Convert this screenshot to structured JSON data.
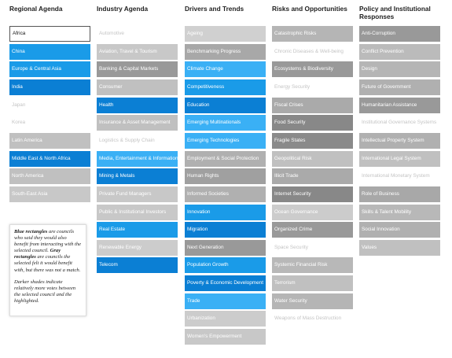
{
  "columns": [
    {
      "title": "Regional Agenda",
      "items": [
        {
          "label": "Africa",
          "color": "#ffffff",
          "selected": true
        },
        {
          "label": "China",
          "color": "#1a9be8"
        },
        {
          "label": "Europe & Central Asia",
          "color": "#1a9be8"
        },
        {
          "label": "India",
          "color": "#0b7fd4"
        },
        {
          "label": "Japan"
        },
        {
          "label": "Korea"
        },
        {
          "label": "Latin America",
          "color": "#c0c0c0"
        },
        {
          "label": "Middle East & North Africa",
          "color": "#0b7fd4"
        },
        {
          "label": "North America",
          "color": "#c0c0c0"
        },
        {
          "label": "South-East Asia",
          "color": "#c8c8c8"
        }
      ]
    },
    {
      "title": "Industry Agenda",
      "items": [
        {
          "label": "Automotive"
        },
        {
          "label": "Aviation, Travel & Tourism",
          "color": "#c8c8c8"
        },
        {
          "label": "Banking & Capital Markets",
          "color": "#999999"
        },
        {
          "label": "Consumer",
          "color": "#c0c0c0"
        },
        {
          "label": "Health",
          "color": "#0b7fd4"
        },
        {
          "label": "Insurance & Asset Management",
          "color": "#c0c0c0"
        },
        {
          "label": "Logistics & Supply Chain"
        },
        {
          "label": "Media, Entertainment & Information",
          "color": "#3ab0f5"
        },
        {
          "label": "Mining & Metals",
          "color": "#0b7fd4"
        },
        {
          "label": "Private Fund Managers",
          "color": "#c8c8c8"
        },
        {
          "label": "Public & Institutional Investors",
          "color": "#c8c8c8"
        },
        {
          "label": "Real Estate",
          "color": "#1a9be8"
        },
        {
          "label": "Renewable Energy",
          "color": "#cccccc"
        },
        {
          "label": "Telecom",
          "color": "#0b7fd4"
        }
      ]
    },
    {
      "title": "Drivers and Trends",
      "items": [
        {
          "label": "Ageing",
          "color": "#d0d0d0"
        },
        {
          "label": "Benchmarking Progress",
          "color": "#a8a8a8"
        },
        {
          "label": "Climate Change",
          "color": "#3ab0f5"
        },
        {
          "label": "Competitiveness",
          "color": "#1a9be8"
        },
        {
          "label": "Education",
          "color": "#0b7fd4"
        },
        {
          "label": "Emerging Multinationals",
          "color": "#3ab0f5"
        },
        {
          "label": "Emerging Technologies",
          "color": "#3ab0f5"
        },
        {
          "label": "Employment & Social Protection",
          "color": "#b0b0b0"
        },
        {
          "label": "Human Rights",
          "color": "#a0a0a0"
        },
        {
          "label": "Informed Societies",
          "color": "#b0b0b0"
        },
        {
          "label": "Innovation",
          "color": "#1a9be8"
        },
        {
          "label": "Migration",
          "color": "#0b7fd4"
        },
        {
          "label": "Next Generation",
          "color": "#999999"
        },
        {
          "label": "Population Growth",
          "color": "#1a9be8"
        },
        {
          "label": "Poverty & Economic Development",
          "color": "#0b7fd4"
        },
        {
          "label": "Trade",
          "color": "#3ab0f5"
        },
        {
          "label": "Urbanization",
          "color": "#cccccc"
        },
        {
          "label": "Women's Empowerment",
          "color": "#c8c8c8"
        }
      ]
    },
    {
      "title": "Risks and Opportunities",
      "items": [
        {
          "label": "Catastrophic Risks",
          "color": "#b5b5b5"
        },
        {
          "label": "Chronic Diseases & Well-being"
        },
        {
          "label": "Ecosystems & Biodiversity",
          "color": "#999999"
        },
        {
          "label": "Energy Security"
        },
        {
          "label": "Fiscal Crises",
          "color": "#aaaaaa"
        },
        {
          "label": "Food Security",
          "color": "#888888"
        },
        {
          "label": "Fragile States",
          "color": "#8a8a8a"
        },
        {
          "label": "Geopolitical Risk",
          "color": "#c0c0c0"
        },
        {
          "label": "Illicit Trade",
          "color": "#aaaaaa"
        },
        {
          "label": "Internet Security",
          "color": "#888888"
        },
        {
          "label": "Ocean Governance",
          "color": "#cccccc"
        },
        {
          "label": "Organized Crime",
          "color": "#999999"
        },
        {
          "label": "Space Security"
        },
        {
          "label": "Systemic Financial Risk",
          "color": "#b8b8b8"
        },
        {
          "label": "Terrorism",
          "color": "#c0c0c0"
        },
        {
          "label": "Water Security",
          "color": "#b5b5b5"
        },
        {
          "label": "Weapons of Mass Destruction"
        }
      ]
    },
    {
      "title": "Policy and Institutional Responses",
      "items": [
        {
          "label": "Anti-Corruption",
          "color": "#999999"
        },
        {
          "label": "Conflict Prevention",
          "color": "#bbbbbb"
        },
        {
          "label": "Design",
          "color": "#b5b5b5"
        },
        {
          "label": "Future of Government",
          "color": "#b0b0b0"
        },
        {
          "label": "Humanitarian Assistance",
          "color": "#999999"
        },
        {
          "label": "Institutional Governance Systems"
        },
        {
          "label": "Intellectual Property System",
          "color": "#b0b0b0"
        },
        {
          "label": "International Legal System",
          "color": "#c0c0c0"
        },
        {
          "label": "International Monetary System"
        },
        {
          "label": "Role of Business",
          "color": "#a8a8a8"
        },
        {
          "label": "Skills & Talent Mobility",
          "color": "#b8b8b8"
        },
        {
          "label": "Social Innovation",
          "color": "#b0b0b0"
        },
        {
          "label": "Values",
          "color": "#c0c0c0"
        }
      ]
    }
  ],
  "legend": {
    "paragraphs": [
      [
        "Blue rectangles",
        " are councils who said they would also benefit from interacting with the selected council. ",
        "Gray rectangles",
        " are councils the selected felt it would benefit with, but there was not a match."
      ],
      [
        "Darker shades indicate relatively more votes between the selected council and the highlighted."
      ]
    ]
  }
}
